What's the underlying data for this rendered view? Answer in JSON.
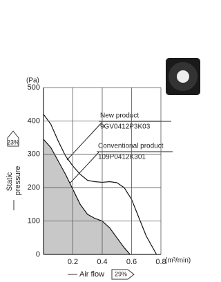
{
  "chart_data": {
    "type": "line",
    "x_unit": "(m³/min)",
    "y_unit": "(Pa)",
    "x_label": "Air flow",
    "x_improvement": "29%",
    "y_label": [
      "Static",
      "pressure"
    ],
    "y_improvement": "23%",
    "xlim": [
      0,
      0.8
    ],
    "xticks": [
      0.2,
      0.4,
      0.6,
      0.8
    ],
    "ylim": [
      0,
      500
    ],
    "yticks": [
      0,
      100,
      200,
      300,
      400,
      500
    ],
    "grid": true,
    "series": [
      {
        "name": "New product",
        "model": "9GV0412P3K03",
        "color": "#111111",
        "fill": null,
        "x": [
          0,
          0.05,
          0.1,
          0.15,
          0.2,
          0.25,
          0.3,
          0.35,
          0.4,
          0.45,
          0.5,
          0.55,
          0.6,
          0.65,
          0.7,
          0.77
        ],
        "values": [
          420,
          390,
          340,
          295,
          265,
          240,
          222,
          218,
          216,
          218,
          215,
          200,
          165,
          110,
          55,
          0
        ]
      },
      {
        "name": "Conventional product",
        "model": "109P0412K301",
        "color": "#111111",
        "fill": "#c8c8c8",
        "x": [
          0,
          0.05,
          0.1,
          0.15,
          0.2,
          0.25,
          0.3,
          0.35,
          0.4,
          0.45,
          0.5,
          0.55,
          0.59
        ],
        "values": [
          345,
          320,
          280,
          240,
          195,
          150,
          120,
          108,
          100,
          80,
          50,
          20,
          0
        ]
      }
    ]
  }
}
